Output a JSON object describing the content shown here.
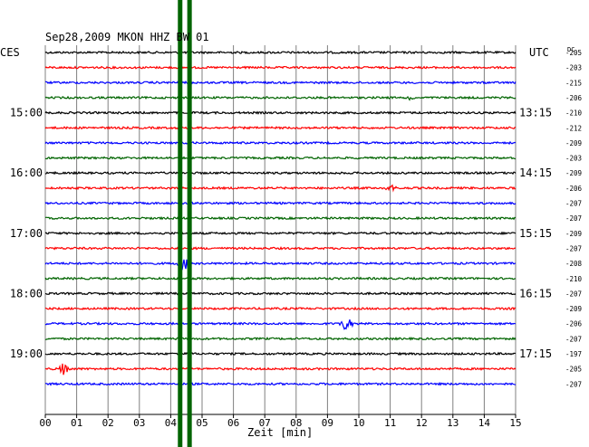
{
  "chart_data": {
    "type": "line",
    "title": "Sep28,2009   MKON HHZ BW 01",
    "left_label": "CES",
    "right_label": "UTC",
    "dc_label": "DC",
    "xlabel": "Zeit [min]",
    "x_ticks": [
      "00",
      "01",
      "02",
      "03",
      "04",
      "05",
      "06",
      "07",
      "08",
      "09",
      "10",
      "11",
      "12",
      "13",
      "14",
      "15"
    ],
    "xlim": [
      0,
      15
    ],
    "trace_colors": [
      "#000000",
      "#ff0000",
      "#0000ff",
      "#006400"
    ],
    "marker_color": "#006400",
    "left_hour_labels": [
      {
        "trace": 4,
        "text": "15:00"
      },
      {
        "trace": 8,
        "text": "16:00"
      },
      {
        "trace": 12,
        "text": "17:00"
      },
      {
        "trace": 16,
        "text": "18:00"
      },
      {
        "trace": 20,
        "text": "19:00"
      }
    ],
    "right_utc_labels": [
      {
        "trace": 4,
        "text": "13:15"
      },
      {
        "trace": 8,
        "text": "14:15"
      },
      {
        "trace": 12,
        "text": "15:15"
      },
      {
        "trace": 16,
        "text": "16:15"
      },
      {
        "trace": 20,
        "text": "17:15"
      }
    ],
    "dc_values": [
      "-205",
      "-203",
      "-215",
      "-206",
      "-210",
      "-212",
      "-209",
      "-203",
      "-209",
      "-206",
      "-207",
      "-207",
      "-209",
      "-207",
      "-208",
      "-210",
      "-207",
      "-209",
      "-206",
      "-207",
      "-197",
      "-205",
      "-207"
    ],
    "vertical_markers_min": [
      4.3,
      4.6
    ],
    "events": [
      {
        "trace": 21,
        "x": 0.6,
        "amplitude": 7
      },
      {
        "trace": 18,
        "x": 9.6,
        "amplitude": 9
      },
      {
        "trace": 9,
        "x": 11.0,
        "amplitude": 4
      },
      {
        "trace": 14,
        "x": 4.4,
        "amplitude": 8
      },
      {
        "trace": 3,
        "x": 11.7,
        "amplitude": 3
      }
    ]
  }
}
